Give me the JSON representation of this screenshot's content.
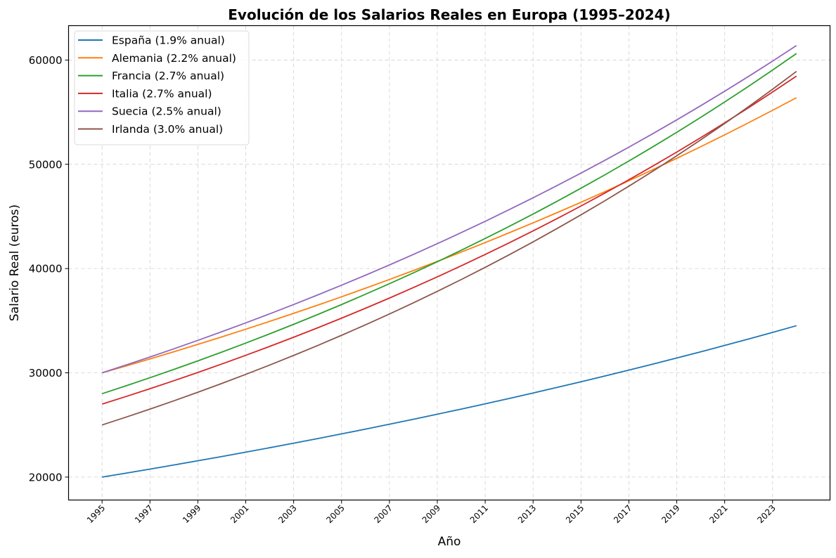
{
  "chart_data": {
    "type": "line",
    "title": "Evolución de los Salarios Reales en Europa (1995–2024)",
    "xlabel": "Año",
    "ylabel": "Salario Real (euros)",
    "x": [
      1995,
      1996,
      1997,
      1998,
      1999,
      2000,
      2001,
      2002,
      2003,
      2004,
      2005,
      2006,
      2007,
      2008,
      2009,
      2010,
      2011,
      2012,
      2013,
      2014,
      2015,
      2016,
      2017,
      2018,
      2019,
      2020,
      2021,
      2022,
      2023,
      2024
    ],
    "xticks": [
      "1995",
      "1997",
      "1999",
      "2001",
      "2003",
      "2005",
      "2007",
      "2009",
      "2011",
      "2013",
      "2015",
      "2017",
      "2019",
      "2021",
      "2023"
    ],
    "yticks": [
      "20000",
      "30000",
      "40000",
      "50000",
      "60000"
    ],
    "xlim": [
      1993.6,
      2025.4
    ],
    "ylim": [
      17800,
      63300
    ],
    "grid": true,
    "legend_position": "top-left",
    "series": [
      {
        "name": "España (1.9% anual)",
        "color": "#1f77b4",
        "start": 20000,
        "rate": 0.019,
        "values": [
          20000,
          20380,
          20767,
          21162,
          21564,
          21974,
          22391,
          22817,
          23250,
          23692,
          24142,
          24601,
          25068,
          25544,
          26030,
          26524,
          27028,
          27542,
          28065,
          28598,
          29142,
          29696,
          30260,
          30835,
          31421,
          32018,
          32626,
          33246,
          33878,
          34521
        ]
      },
      {
        "name": "Alemania (2.2% anual)",
        "color": "#ff7f0e",
        "start": 30000,
        "rate": 0.022,
        "values": [
          30000,
          30660,
          31335,
          32024,
          32729,
          33449,
          34185,
          34937,
          35705,
          36491,
          37294,
          38114,
          38953,
          39810,
          40686,
          41581,
          42495,
          43430,
          44386,
          45362,
          46360,
          47380,
          48423,
          49488,
          50577,
          51689,
          52826,
          53989,
          55177,
          56390
        ]
      },
      {
        "name": "Francia (2.7% anual)",
        "color": "#2ca02c",
        "start": 28000,
        "rate": 0.027,
        "values": [
          28000,
          28756,
          29532,
          30330,
          31149,
          31990,
          32854,
          33741,
          34652,
          35587,
          36548,
          37535,
          38549,
          39589,
          40658,
          41756,
          42884,
          44041,
          45230,
          46452,
          47706,
          48994,
          50317,
          51675,
          53071,
          54504,
          55975,
          57486,
          59038,
          60632
        ]
      },
      {
        "name": "Italia (2.7% anual)",
        "color": "#d62728",
        "start": 27000,
        "rate": 0.027,
        "values": [
          27000,
          27729,
          28478,
          29247,
          30036,
          30847,
          31680,
          32536,
          33414,
          34316,
          35243,
          36195,
          37172,
          38175,
          39206,
          40265,
          41352,
          42468,
          43615,
          44793,
          46002,
          47244,
          48520,
          49830,
          51175,
          52557,
          53976,
          55433,
          56930,
          58467
        ]
      },
      {
        "name": "Suecia (2.5% anual)",
        "color": "#9467bd",
        "start": 30000,
        "rate": 0.025,
        "values": [
          30000,
          30750,
          31519,
          32307,
          33114,
          33942,
          34791,
          35661,
          36552,
          37466,
          38403,
          39363,
          40347,
          41355,
          42389,
          43449,
          44535,
          45649,
          46790,
          47960,
          49159,
          50388,
          51647,
          52939,
          54262,
          55619,
          57009,
          58434,
          59895,
          61393
        ]
      },
      {
        "name": "Irlanda (3.0% anual)",
        "color": "#8c564b",
        "start": 25000,
        "rate": 0.03,
        "values": [
          25000,
          25750,
          26523,
          27318,
          28138,
          28982,
          29851,
          30747,
          31669,
          32619,
          33598,
          34606,
          35644,
          36713,
          37815,
          38949,
          40118,
          41321,
          42561,
          43838,
          45153,
          46507,
          47903,
          49340,
          50820,
          52344,
          53915,
          55532,
          57198,
          58914
        ]
      }
    ]
  }
}
